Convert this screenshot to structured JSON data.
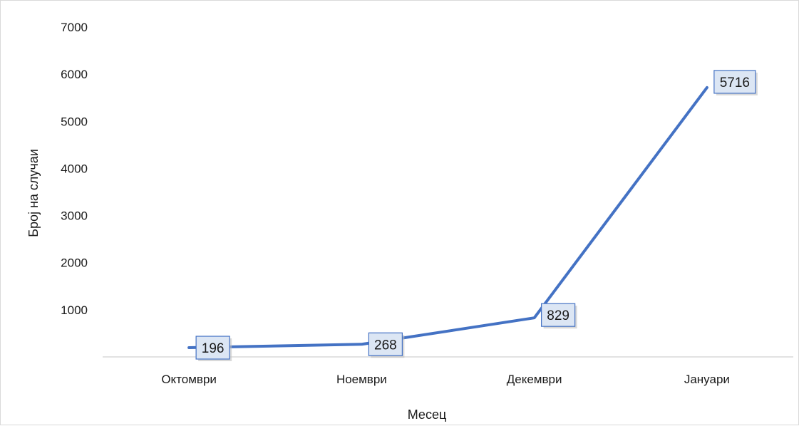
{
  "chart_data": {
    "type": "line",
    "title": "",
    "xlabel": "Месец",
    "ylabel": "Број на случаи",
    "categories": [
      "Октомври",
      "Ноември",
      "Декември",
      "Јануари"
    ],
    "series": [
      {
        "values": [
          196,
          268,
          829,
          5716
        ],
        "data_labels": [
          "196",
          "268",
          "829",
          "5716"
        ]
      }
    ],
    "ylim": [
      0,
      7000
    ],
    "yticks": [
      1000,
      2000,
      3000,
      4000,
      5000,
      6000,
      7000
    ],
    "ytick_labels": [
      "1000",
      "2000",
      "3000",
      "4000",
      "5000",
      "6000",
      "7000"
    ],
    "grid": false,
    "legend": "none",
    "colors": {
      "line": "#4472c4",
      "label_fill": "#dce6f4",
      "label_border": "#4472c4",
      "axis": "#d9d9d9"
    }
  }
}
